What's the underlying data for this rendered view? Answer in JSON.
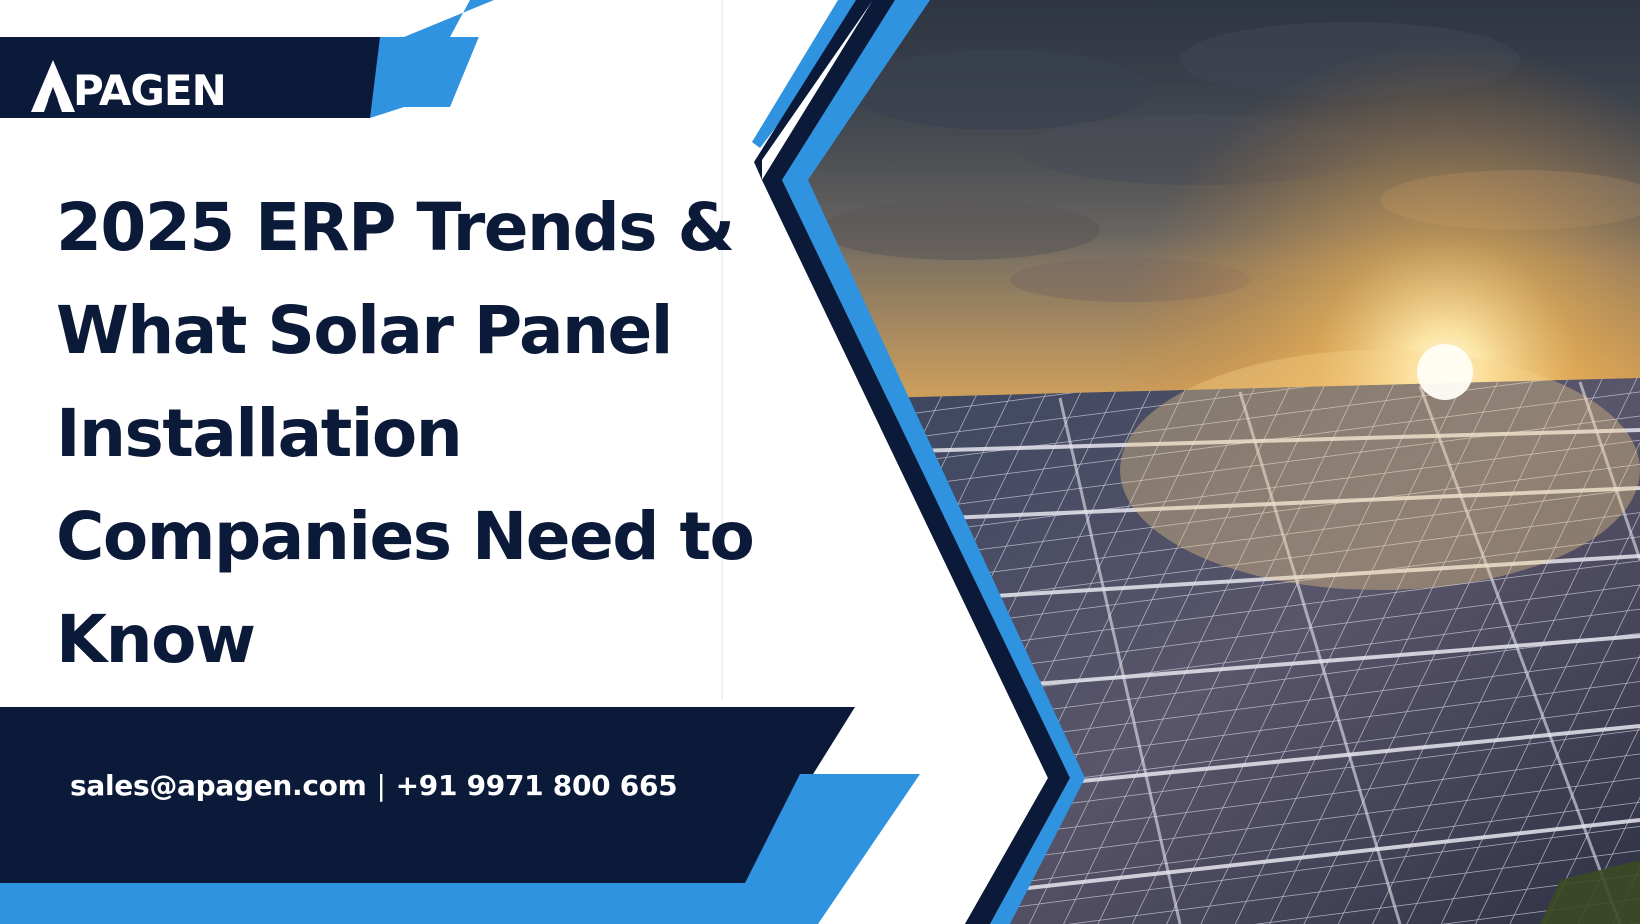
{
  "brand": {
    "name": "PAGEN",
    "logo_icon": "apagen-a-logo-mark",
    "colors": {
      "navy": "#0c1a3a",
      "blue": "#2f93df",
      "white": "#ffffff"
    }
  },
  "headline": {
    "lines": [
      "2025 ERP Trends &",
      "What Solar Panel",
      "Installation",
      "Companies Need to",
      "Know"
    ]
  },
  "contact": {
    "email": "sales@apagen.com",
    "separator": "|",
    "phone": "+91 9971 800 665"
  },
  "image": {
    "subject": "solar-panel-field-at-sunset-photo"
  }
}
